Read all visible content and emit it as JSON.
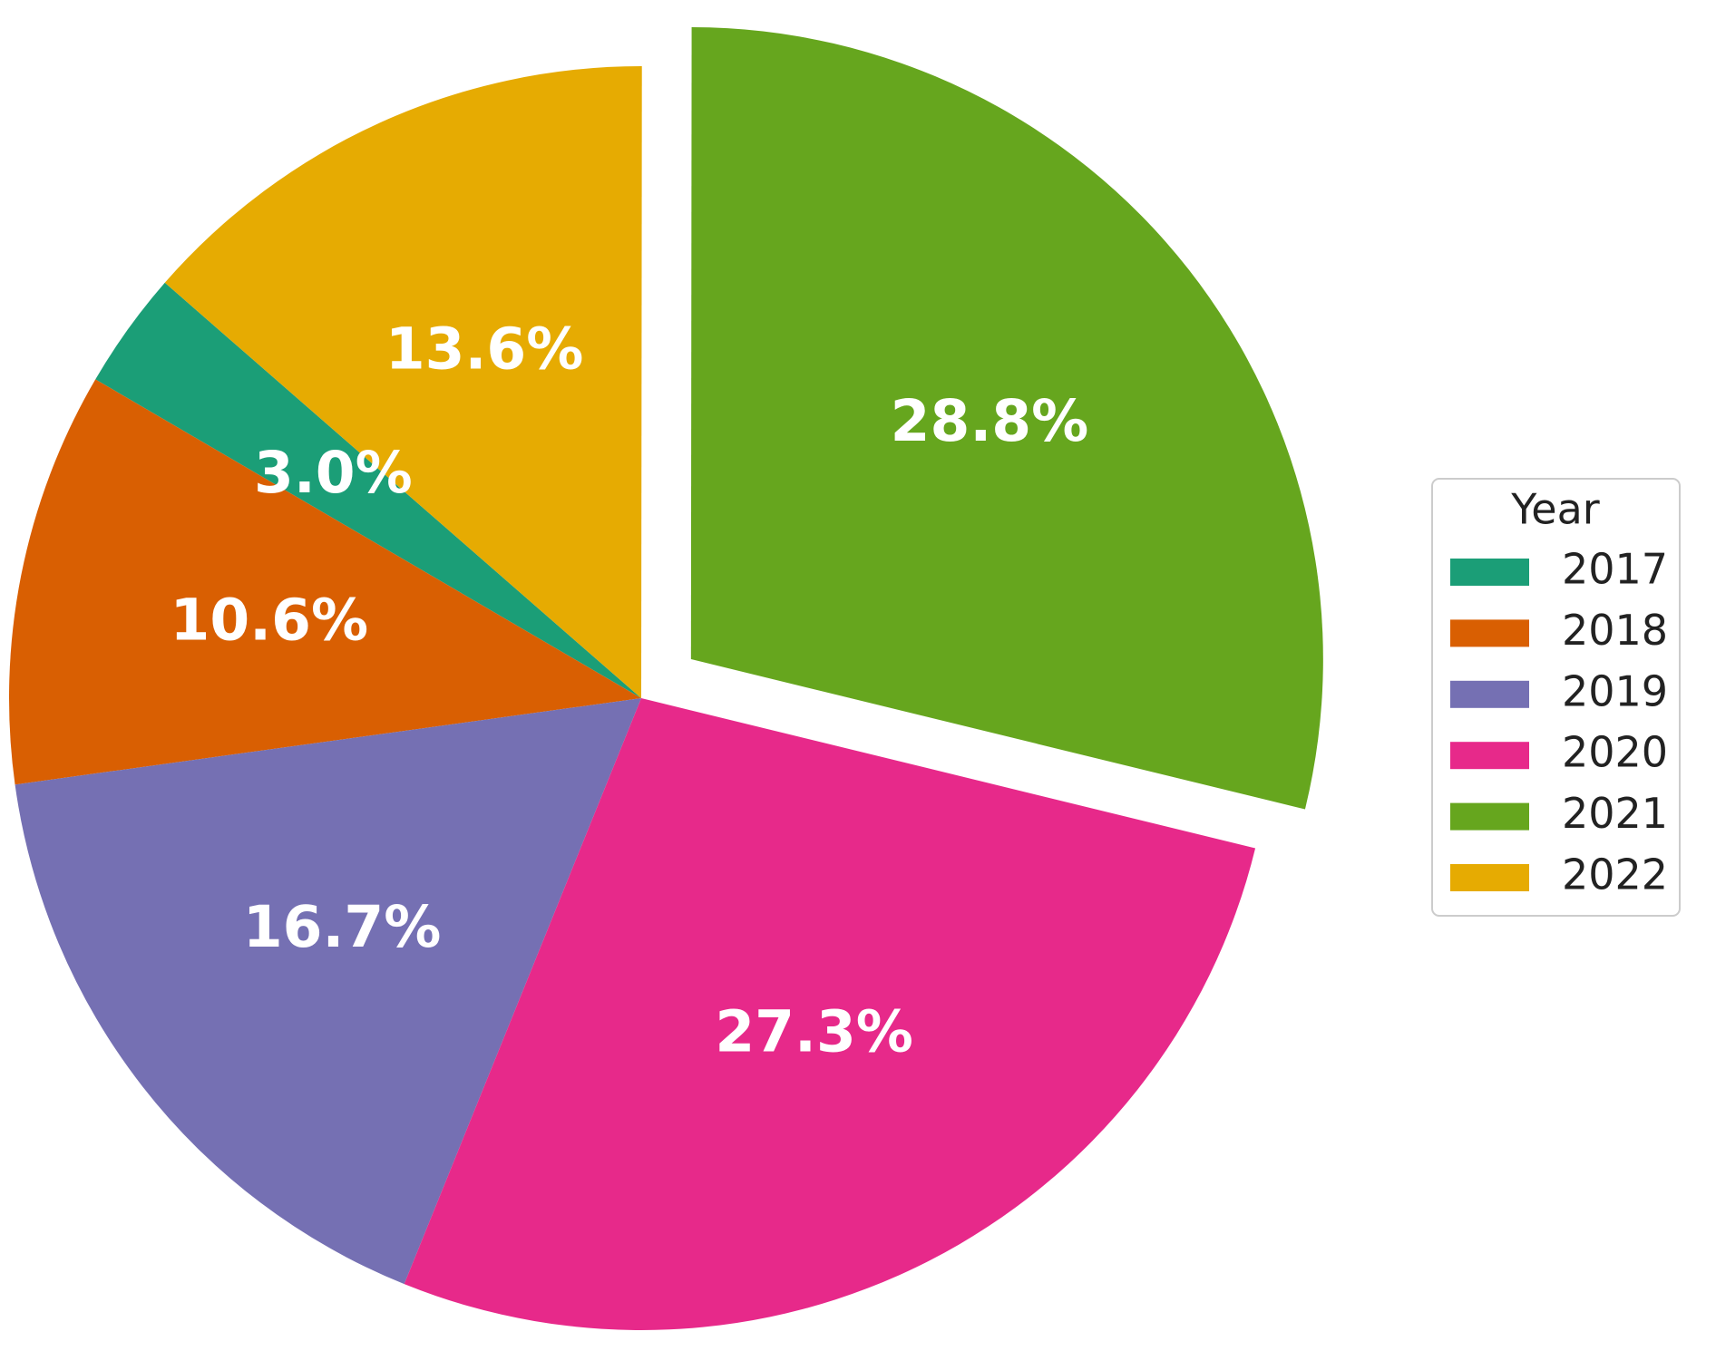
{
  "chart_data": {
    "type": "pie",
    "categories": [
      "2017",
      "2018",
      "2019",
      "2020",
      "2021",
      "2022"
    ],
    "values": [
      3.0,
      10.6,
      16.7,
      27.3,
      28.8,
      13.6
    ],
    "value_labels": [
      "3.0%",
      "10.6%",
      "16.7%",
      "27.3%",
      "28.8%",
      "13.6%"
    ],
    "colors": [
      "#1b9e77",
      "#d95f02",
      "#7570b3",
      "#e7298a",
      "#66a61e",
      "#e6ab02"
    ],
    "explode": [
      0,
      0,
      0,
      0,
      0.1,
      0
    ],
    "legend_title": "Year",
    "legend": "right"
  }
}
